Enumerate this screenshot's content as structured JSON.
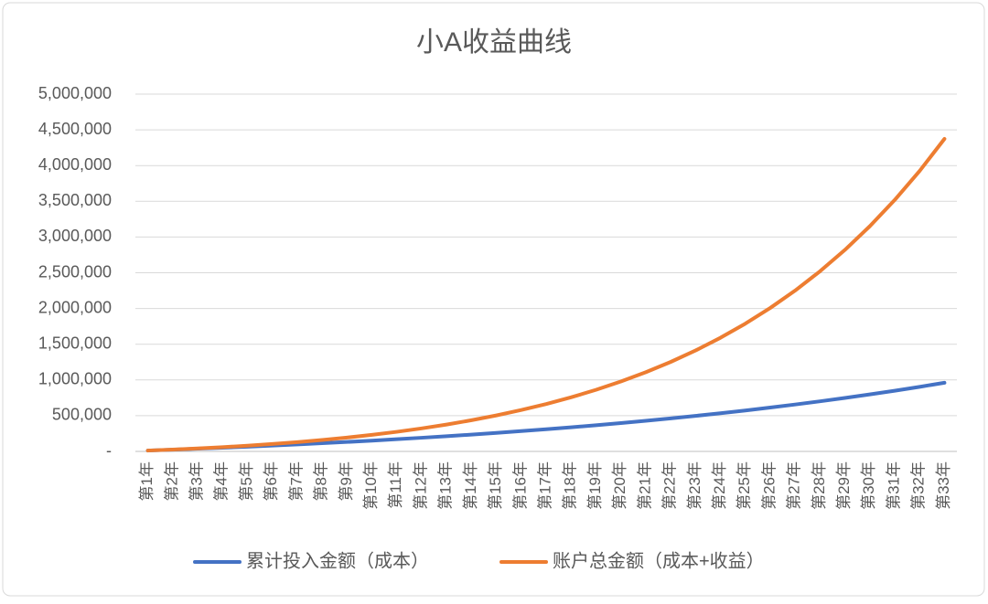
{
  "chart_data": {
    "type": "line",
    "title": "小A收益曲线",
    "categories": [
      "第1年",
      "第2年",
      "第3年",
      "第4年",
      "第5年",
      "第6年",
      "第7年",
      "第8年",
      "第9年",
      "第10年",
      "第11年",
      "第12年",
      "第13年",
      "第14年",
      "第15年",
      "第16年",
      "第17年",
      "第18年",
      "第19年",
      "第20年",
      "第21年",
      "第22年",
      "第23年",
      "第24年",
      "第25年",
      "第26年",
      "第27年",
      "第28年",
      "第29年",
      "第30年",
      "第31年",
      "第32年",
      "第33年"
    ],
    "series": [
      {
        "name": "累计投入金额（成本）",
        "color": "#4472c4",
        "values": [
          12000,
          24600,
          37830,
          51722,
          66308,
          81623,
          97704,
          114589,
          132318,
          150934,
          170481,
          191005,
          212555,
          235183,
          258942,
          283889,
          310084,
          337588,
          366468,
          396792,
          428632,
          462064,
          497167,
          534025,
          572726,
          613362,
          656030,
          700832,
          747874,
          797268,
          849132,
          903589,
          960769
        ]
      },
      {
        "name": "账户总金额（成本+收益）",
        "color": "#ed7d31",
        "values": [
          12000,
          25800,
          41610,
          59663,
          80215,
          103552,
          129988,
          159872,
          193588,
          231563,
          274266,
          322217,
          375989,
          436216,
          503597,
          578904,
          662989,
          756792,
          861351,
          977810,
          1107431,
          1251606,
          1411870,
          1589915,
          1787608,
          2007005,
          2250374,
          2520213,
          2819276,
          3150598,
          3517522,
          3923731,
          4373284
        ]
      }
    ],
    "ylim": [
      0,
      5000000
    ],
    "yticks": [
      {
        "value": 0,
        "label": "-"
      },
      {
        "value": 500000,
        "label": "500,000"
      },
      {
        "value": 1000000,
        "label": "1,000,000"
      },
      {
        "value": 1500000,
        "label": "1,500,000"
      },
      {
        "value": 2000000,
        "label": "2,000,000"
      },
      {
        "value": 2500000,
        "label": "2,500,000"
      },
      {
        "value": 3000000,
        "label": "3,000,000"
      },
      {
        "value": 3500000,
        "label": "3,500,000"
      },
      {
        "value": 4000000,
        "label": "4,000,000"
      },
      {
        "value": 4500000,
        "label": "4,500,000"
      },
      {
        "value": 5000000,
        "label": "5,000,000"
      }
    ],
    "grid": true,
    "legend": "bottom"
  }
}
